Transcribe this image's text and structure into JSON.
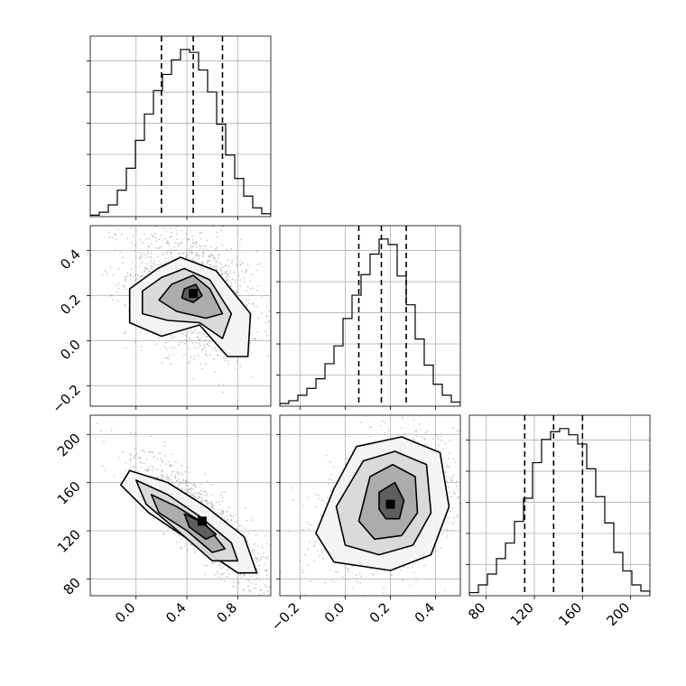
{
  "chart_data": {
    "type": "corner",
    "grid": true,
    "colors": {
      "hist_line": "#000000",
      "quantile_line": "#000000",
      "scatter": "#999999",
      "density_max": "#000000",
      "grid": "#b0b0b0"
    },
    "parameters": [
      {
        "range": [
          -0.36,
          1.06
        ],
        "ticks": [
          "0.0",
          "0.4",
          "0.8"
        ],
        "tick_values": [
          0.0,
          0.4,
          0.8
        ],
        "quantiles": [
          0.2,
          0.45,
          0.68
        ]
      },
      {
        "range": [
          -0.29,
          0.51
        ],
        "ticks": [
          "−0.2",
          "0.0",
          "0.2",
          "0.4"
        ],
        "tick_values": [
          -0.2,
          0.0,
          0.2,
          0.4
        ],
        "quantiles": [
          0.06,
          0.16,
          0.27
        ]
      },
      {
        "range": [
          66,
          216
        ],
        "ticks": [
          "80",
          "120",
          "160",
          "200"
        ],
        "tick_values": [
          80,
          120,
          160,
          200
        ],
        "quantiles": [
          112,
          136,
          160
        ]
      }
    ],
    "histograms": [
      {
        "bin_edges": [
          -0.36,
          -0.289,
          -0.218,
          -0.147,
          -0.076,
          -0.005,
          0.066,
          0.137,
          0.208,
          0.279,
          0.35,
          0.421,
          0.492,
          0.563,
          0.634,
          0.705,
          0.776,
          0.847,
          0.918,
          0.989,
          1.06
        ],
        "counts": [
          1,
          3,
          8,
          18,
          33,
          52,
          70,
          86,
          97,
          107,
          114,
          112,
          100,
          85,
          63,
          42,
          26,
          14,
          6,
          2
        ]
      },
      {
        "bin_edges": [
          -0.29,
          -0.25,
          -0.21,
          -0.17,
          -0.13,
          -0.09,
          -0.05,
          -0.01,
          0.03,
          0.07,
          0.11,
          0.15,
          0.19,
          0.23,
          0.27,
          0.31,
          0.35,
          0.39,
          0.43,
          0.47,
          0.51
        ],
        "counts": [
          2,
          4,
          8,
          13,
          20,
          31,
          44,
          64,
          81,
          96,
          111,
          122,
          118,
          95,
          74,
          49,
          30,
          16,
          8,
          3
        ]
      },
      {
        "bin_edges": [
          66,
          73.5,
          81,
          88.5,
          96,
          103.5,
          111,
          118.5,
          126,
          133.5,
          141,
          148.5,
          156,
          163.5,
          171,
          178.5,
          186,
          193.5,
          201,
          208.5,
          216
        ],
        "counts": [
          2,
          7,
          14,
          24,
          34,
          48,
          63,
          86,
          101,
          106,
          108,
          104,
          98,
          82,
          64,
          47,
          28,
          16,
          7,
          3
        ]
      }
    ],
    "pairs": [
      {
        "x_param": 0,
        "y_param": 1,
        "center": [
          0.45,
          0.21
        ],
        "contours": [
          [
            [
              0.17,
              0.32
            ],
            [
              0.35,
              0.37
            ],
            [
              0.63,
              0.31
            ],
            [
              0.9,
              0.12
            ],
            [
              0.88,
              -0.07
            ],
            [
              0.72,
              -0.07
            ],
            [
              0.5,
              0.07
            ],
            [
              0.2,
              0.02
            ],
            [
              -0.05,
              0.08
            ],
            [
              -0.05,
              0.23
            ]
          ],
          [
            [
              0.2,
              0.28
            ],
            [
              0.38,
              0.32
            ],
            [
              0.58,
              0.27
            ],
            [
              0.75,
              0.12
            ],
            [
              0.68,
              0.01
            ],
            [
              0.5,
              0.08
            ],
            [
              0.25,
              0.09
            ],
            [
              0.05,
              0.12
            ],
            [
              0.05,
              0.22
            ]
          ],
          [
            [
              0.28,
              0.25
            ],
            [
              0.45,
              0.29
            ],
            [
              0.58,
              0.23
            ],
            [
              0.68,
              0.12
            ],
            [
              0.55,
              0.1
            ],
            [
              0.32,
              0.13
            ],
            [
              0.18,
              0.18
            ]
          ],
          [
            [
              0.38,
              0.23
            ],
            [
              0.47,
              0.25
            ],
            [
              0.52,
              0.2
            ],
            [
              0.45,
              0.17
            ],
            [
              0.36,
              0.19
            ]
          ]
        ]
      },
      {
        "x_param": 0,
        "y_param": 2,
        "center": [
          0.52,
          128
        ],
        "contours": [
          [
            [
              -0.05,
              170
            ],
            [
              0.25,
              160
            ],
            [
              0.55,
              140
            ],
            [
              0.85,
              115
            ],
            [
              0.95,
              85
            ],
            [
              0.8,
              85
            ],
            [
              0.45,
              110
            ],
            [
              0.1,
              135
            ],
            [
              -0.12,
              158
            ]
          ],
          [
            [
              0.0,
              162
            ],
            [
              0.25,
              150
            ],
            [
              0.5,
              132
            ],
            [
              0.75,
              110
            ],
            [
              0.8,
              95
            ],
            [
              0.6,
              95
            ],
            [
              0.35,
              118
            ],
            [
              0.08,
              142
            ]
          ],
          [
            [
              0.12,
              150
            ],
            [
              0.32,
              140
            ],
            [
              0.55,
              125
            ],
            [
              0.7,
              105
            ],
            [
              0.6,
              102
            ],
            [
              0.4,
              120
            ],
            [
              0.18,
              135
            ]
          ],
          [
            [
              0.38,
              134
            ],
            [
              0.52,
              127
            ],
            [
              0.63,
              117
            ],
            [
              0.55,
              113
            ],
            [
              0.42,
              123
            ]
          ]
        ]
      },
      {
        "x_param": 1,
        "y_param": 2,
        "center": [
          0.2,
          142
        ],
        "contours": [
          [
            [
              0.05,
              190
            ],
            [
              0.25,
              198
            ],
            [
              0.42,
              185
            ],
            [
              0.46,
              140
            ],
            [
              0.38,
              100
            ],
            [
              0.2,
              87
            ],
            [
              -0.05,
              94
            ],
            [
              -0.13,
              118
            ],
            [
              -0.05,
              155
            ]
          ],
          [
            [
              0.08,
              178
            ],
            [
              0.22,
              186
            ],
            [
              0.36,
              175
            ],
            [
              0.38,
              135
            ],
            [
              0.3,
              108
            ],
            [
              0.15,
              100
            ],
            [
              0.0,
              108
            ],
            [
              -0.04,
              140
            ]
          ],
          [
            [
              0.11,
              165
            ],
            [
              0.21,
              175
            ],
            [
              0.31,
              165
            ],
            [
              0.32,
              135
            ],
            [
              0.25,
              116
            ],
            [
              0.13,
              113
            ],
            [
              0.06,
              128
            ]
          ],
          [
            [
              0.15,
              152
            ],
            [
              0.22,
              160
            ],
            [
              0.26,
              145
            ],
            [
              0.24,
              130
            ],
            [
              0.18,
              130
            ],
            [
              0.15,
              138
            ]
          ]
        ]
      }
    ]
  }
}
